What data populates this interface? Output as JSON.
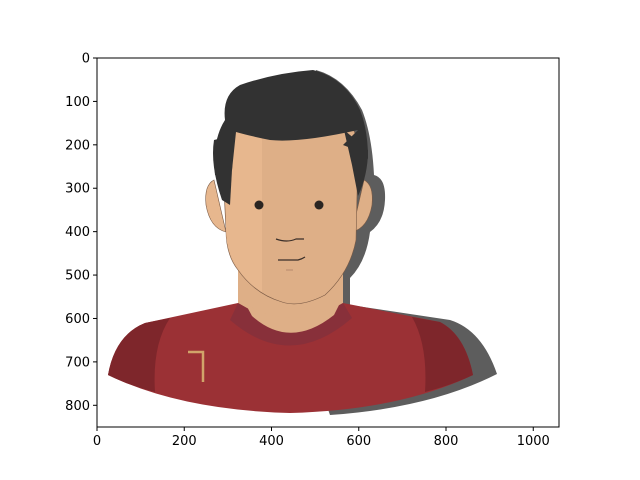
{
  "chart_data": {
    "type": "image",
    "title": "",
    "xlabel": "",
    "ylabel": "",
    "xlim": [
      0,
      1059
    ],
    "ylim": [
      850,
      0
    ],
    "x_ticks": [
      0,
      200,
      400,
      600,
      800,
      1000
    ],
    "y_ticks": [
      0,
      100,
      200,
      300,
      400,
      500,
      600,
      700,
      800
    ],
    "grid": false,
    "image_content": "flat-style cartoon portrait of a dark-haired man wearing a red jersey",
    "colors": {
      "hair": "#323232",
      "skin": "#deaf87",
      "skin_light": "#e7b78e",
      "shadow": "#5d5d5d",
      "jersey": "#9b3135",
      "jersey_dark": "#7e262b",
      "jersey_trim": "#d1a46a"
    }
  }
}
